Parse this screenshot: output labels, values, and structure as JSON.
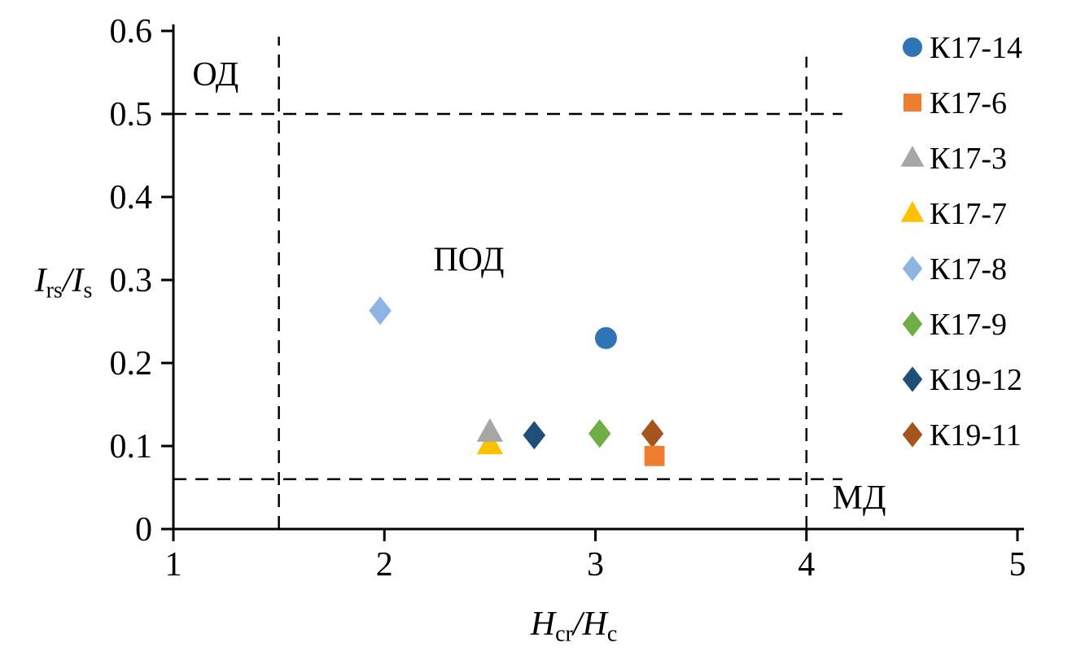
{
  "figure": {
    "background": "#ffffff",
    "axis_color": "#000000"
  },
  "chart_data": {
    "type": "scatter",
    "title": "",
    "xlabel": "H_cr/H_c",
    "ylabel": "I_rs/I_s",
    "xlim": [
      1,
      5
    ],
    "ylim": [
      0,
      0.6
    ],
    "xticks": [
      1,
      2,
      3,
      4,
      5
    ],
    "xtick_labels": [
      "1",
      "2",
      "3",
      "4",
      "5"
    ],
    "yticks": [
      0,
      0.1,
      0.2,
      0.3,
      0.4,
      0.5,
      0.6
    ],
    "ytick_labels": [
      "0",
      "0.1",
      "0.2",
      "0.3",
      "0.4",
      "0.5",
      "0.6"
    ],
    "grid": false,
    "legend_position": "right",
    "reference_lines": [
      {
        "orientation": "horizontal",
        "value": 0.5,
        "from": 1,
        "to": 4.17
      },
      {
        "orientation": "horizontal",
        "value": 0.06,
        "from": 1,
        "to": 4.17
      },
      {
        "orientation": "vertical",
        "value": 1.5,
        "from": 0,
        "to": 0.593
      },
      {
        "orientation": "vertical",
        "value": 4.0,
        "from": 0,
        "to": 0.569
      }
    ],
    "region_labels": [
      {
        "text": "ОД",
        "x": 1.2,
        "y": 0.549
      },
      {
        "text": "ПОД",
        "x": 2.4,
        "y": 0.326
      },
      {
        "text": "МД",
        "x": 4.25,
        "y": 0.039
      }
    ],
    "series": [
      {
        "name": "К17-14",
        "marker": "circle",
        "color": "#2e75b6",
        "points": [
          [
            3.05,
            0.23
          ]
        ]
      },
      {
        "name": "К17-6",
        "marker": "square",
        "color": "#ed7d31",
        "points": [
          [
            3.28,
            0.088
          ]
        ]
      },
      {
        "name": "К17-3",
        "marker": "triangle",
        "color": "#a6a6a6",
        "points": [
          [
            2.5,
            0.117
          ]
        ]
      },
      {
        "name": "К17-7",
        "marker": "triangle",
        "color": "#ffc000",
        "points": [
          [
            2.5,
            0.102
          ]
        ]
      },
      {
        "name": "К17-8",
        "marker": "diamond",
        "color": "#8eb4e3",
        "points": [
          [
            1.98,
            0.263
          ]
        ]
      },
      {
        "name": "К17-9",
        "marker": "diamond",
        "color": "#70ad47",
        "points": [
          [
            3.02,
            0.115
          ]
        ]
      },
      {
        "name": "К19-12",
        "marker": "diamond",
        "color": "#1f4e79",
        "points": [
          [
            2.71,
            0.113
          ]
        ]
      },
      {
        "name": "К19-11",
        "marker": "diamond",
        "color": "#a5541e",
        "points": [
          [
            3.27,
            0.115
          ]
        ]
      }
    ]
  }
}
